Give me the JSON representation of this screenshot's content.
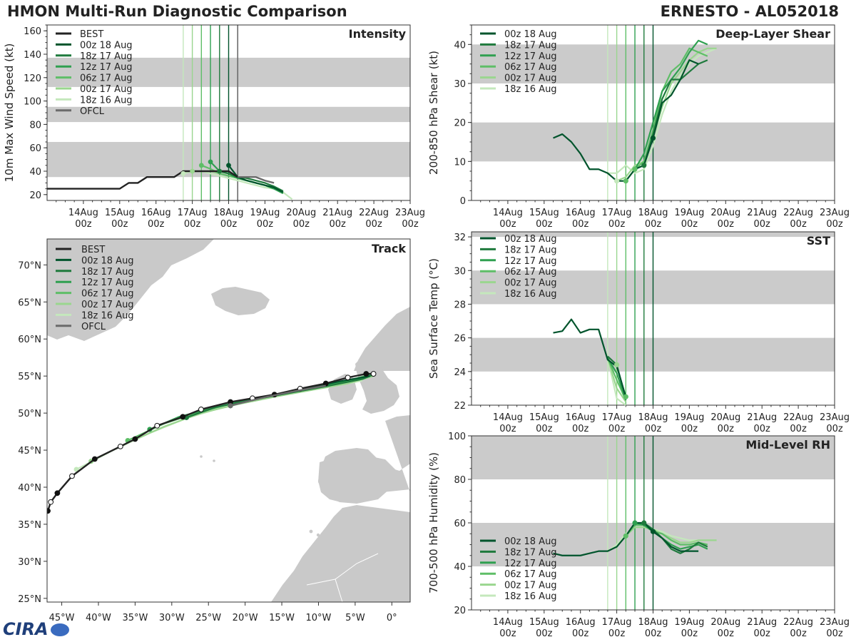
{
  "header": {
    "title_left": "HMON Multi-Run Diagnostic Comparison",
    "title_right": "ERNESTO - AL052018"
  },
  "logo": {
    "text": "CIRA",
    "icon": "cira-logo-icon"
  },
  "colors": {
    "best": "#222222",
    "ofcl": "#6b6b6b",
    "band": "#cbcbcb",
    "runs": [
      "#00542c",
      "#1f7a3d",
      "#2fa050",
      "#5ebe67",
      "#9ad68f",
      "#c4e8bc"
    ],
    "land": "#c9c9c9"
  },
  "time_axis": {
    "ticks": [
      "14Aug\n00z",
      "15Aug\n00z",
      "16Aug\n00z",
      "17Aug\n00z",
      "18Aug\n00z",
      "19Aug\n00z",
      "20Aug\n00z",
      "21Aug\n00z",
      "22Aug\n00z",
      "23Aug\n00z"
    ],
    "range": [
      13.0,
      23.0
    ]
  },
  "runs": [
    "00z 18 Aug",
    "18z 17 Aug",
    "12z 17 Aug",
    "06z 17 Aug",
    "00z 17 Aug",
    "18z 16 Aug"
  ],
  "run_init_days": [
    18.0,
    17.75,
    17.5,
    17.25,
    17.0,
    16.75
  ],
  "chart_data": [
    {
      "id": "intensity",
      "type": "line",
      "title": "Intensity",
      "ylabel": "10m Max Wind Speed (kt)",
      "ylim": [
        15,
        165
      ],
      "yticks": [
        20,
        40,
        60,
        80,
        100,
        120,
        140,
        160
      ],
      "bands": [
        [
          35,
          65
        ],
        [
          82,
          95
        ],
        [
          112,
          137
        ]
      ],
      "legend": [
        "BEST",
        "00z 18 Aug",
        "18z 17 Aug",
        "12z 17 Aug",
        "06z 17 Aug",
        "00z 17 Aug",
        "18z 16 Aug",
        "OFCL"
      ],
      "best": {
        "x": [
          13.0,
          14.0,
          14.75,
          15.0,
          15.25,
          15.5,
          15.75,
          16.0,
          16.25,
          16.5,
          16.75,
          17.0,
          17.25,
          17.5,
          17.75,
          18.0,
          18.25
        ],
        "y": [
          25,
          25,
          25,
          25,
          30,
          30,
          35,
          35,
          35,
          35,
          40,
          40,
          40,
          40,
          40,
          40,
          35
        ]
      },
      "ofcl": {
        "x": [
          18.25,
          18.5,
          18.75,
          19.0,
          19.25
        ],
        "y": [
          35,
          35,
          35,
          32,
          30
        ]
      },
      "ofcl_line_x": 18.25,
      "series": [
        {
          "x": [
            18.0,
            18.25,
            18.5,
            18.75,
            19.0,
            19.25,
            19.5
          ],
          "y": [
            45,
            35,
            32,
            30,
            28,
            26,
            22
          ]
        },
        {
          "x": [
            17.75,
            18.0,
            18.25,
            18.5,
            18.75,
            19.0,
            19.25,
            19.5
          ],
          "y": [
            40,
            38,
            35,
            34,
            32,
            30,
            27,
            23
          ]
        },
        {
          "x": [
            17.5,
            17.75,
            18.0,
            18.25,
            18.5,
            18.75,
            19.0,
            19.25,
            19.5
          ],
          "y": [
            48,
            40,
            38,
            34,
            32,
            30,
            28,
            25,
            21
          ]
        },
        {
          "x": [
            17.25,
            17.5,
            17.75,
            18.0,
            18.25,
            18.5,
            18.75,
            19.0,
            19.25,
            19.5
          ],
          "y": [
            45,
            42,
            38,
            36,
            34,
            32,
            30,
            28,
            26,
            22
          ]
        },
        {
          "x": [
            17.0,
            17.25,
            17.5,
            17.75,
            18.0,
            18.25,
            18.5,
            18.75,
            19.0,
            19.25,
            19.5
          ],
          "y": [
            40,
            40,
            40,
            38,
            36,
            34,
            32,
            30,
            28,
            25,
            22
          ]
        },
        {
          "x": [
            16.75,
            17.0,
            17.25,
            17.5,
            17.75,
            18.0,
            18.25,
            18.5,
            18.75,
            19.0,
            19.25,
            19.5,
            19.75
          ],
          "y": [
            38,
            40,
            40,
            38,
            36,
            34,
            32,
            30,
            28,
            26,
            25,
            22,
            16
          ]
        }
      ]
    },
    {
      "id": "shear",
      "type": "line",
      "title": "Deep-Layer Shear",
      "ylabel": "200-850 hPa Shear (kt)",
      "ylim": [
        0,
        45
      ],
      "yticks": [
        0,
        10,
        20,
        30,
        40
      ],
      "bands": [
        [
          10,
          20
        ],
        [
          30,
          40
        ]
      ],
      "legend": [
        "00z 18 Aug",
        "18z 17 Aug",
        "12z 17 Aug",
        "06z 17 Aug",
        "00z 17 Aug",
        "18z 16 Aug"
      ],
      "series": [
        {
          "x": [
            15.25,
            15.5,
            15.75,
            16.0,
            16.25,
            16.5,
            16.75,
            17.0,
            17.25,
            17.5,
            17.75,
            18.0,
            18.25,
            18.5,
            18.75,
            19.0,
            19.25
          ],
          "y": [
            16,
            17,
            15,
            12,
            8,
            8,
            7,
            5,
            5,
            8,
            9,
            16,
            25,
            27,
            31,
            36,
            35
          ]
        },
        {
          "x": [
            17.75,
            18.0,
            18.25,
            18.5,
            18.75,
            19.0,
            19.25,
            19.5
          ],
          "y": [
            9,
            17,
            26,
            31,
            31,
            33,
            35,
            36
          ]
        },
        {
          "x": [
            17.5,
            17.75,
            18.0,
            18.25,
            18.5,
            18.75,
            19.0,
            19.25,
            19.5
          ],
          "y": [
            8,
            12,
            20,
            28,
            31,
            34,
            38,
            41,
            40
          ]
        },
        {
          "x": [
            17.25,
            17.5,
            17.75,
            18.0,
            18.25,
            18.5,
            18.75,
            19.0,
            19.25,
            19.5
          ],
          "y": [
            5,
            8,
            10,
            18,
            28,
            33,
            35,
            39,
            38,
            37
          ]
        },
        {
          "x": [
            17.0,
            17.25,
            17.5,
            17.75,
            18.0,
            18.25,
            18.5,
            18.75,
            19.0,
            19.25,
            19.5,
            19.75
          ],
          "y": [
            5,
            6,
            9,
            10,
            16,
            24,
            30,
            33,
            36,
            38,
            39,
            39
          ]
        },
        {
          "x": [
            16.75,
            17.0,
            17.25,
            17.5,
            17.75,
            18.0,
            18.25,
            18.5,
            18.75,
            19.0,
            19.25,
            19.5,
            19.75
          ],
          "y": [
            7,
            7,
            9,
            7,
            8,
            14,
            22,
            28,
            32,
            35,
            37,
            38,
            39
          ]
        }
      ],
      "markers": [
        [
          17.0,
          5,
          5
        ],
        [
          17.25,
          5,
          3
        ],
        [
          17.5,
          8,
          3
        ],
        [
          17.75,
          9,
          1
        ],
        [
          18.0,
          16,
          0
        ]
      ]
    },
    {
      "id": "sst",
      "type": "line",
      "title": "SST",
      "ylabel": "Sea Surface Temp (°C)",
      "ylim": [
        22,
        32.3
      ],
      "yticks": [
        22,
        24,
        26,
        28,
        30,
        32
      ],
      "bands": [
        [
          24,
          26
        ],
        [
          28,
          30
        ],
        [
          32,
          33
        ]
      ],
      "legend": [
        "00z 18 Aug",
        "18z 17 Aug",
        "12z 17 Aug",
        "06z 17 Aug",
        "00z 17 Aug",
        "18z 16 Aug"
      ],
      "series": [
        {
          "x": [
            15.25,
            15.5,
            15.75,
            16.0,
            16.25,
            16.5,
            16.75,
            17.0,
            17.25
          ],
          "y": [
            26.3,
            26.4,
            27.1,
            26.3,
            26.5,
            26.5,
            24.7,
            24.3,
            22.5
          ]
        },
        {
          "x": [
            16.75,
            17.0,
            17.25
          ],
          "y": [
            24.9,
            24.4,
            22.4
          ]
        },
        {
          "x": [
            16.75,
            17.0,
            17.25
          ],
          "y": [
            24.8,
            23.9,
            22.3
          ]
        },
        {
          "x": [
            16.75,
            17.0,
            17.25
          ],
          "y": [
            24.8,
            23.5,
            22.3
          ]
        },
        {
          "x": [
            16.75,
            17.0,
            17.25
          ],
          "y": [
            24.8,
            23.0,
            22.2
          ]
        },
        {
          "x": [
            16.75,
            17.0,
            17.25
          ],
          "y": [
            24.8,
            22.4,
            22.0
          ]
        }
      ],
      "markers": [
        [
          17.0,
          24.4,
          4
        ],
        [
          17.25,
          22.5,
          3
        ]
      ]
    },
    {
      "id": "rh",
      "type": "line",
      "title": "Mid-Level RH",
      "ylabel": "700-500 hPa Humidity (%)",
      "ylim": [
        20,
        100
      ],
      "yticks": [
        20,
        40,
        60,
        80,
        100
      ],
      "bands": [
        [
          40,
          60
        ],
        [
          80,
          100
        ]
      ],
      "legend": [
        "00z 18 Aug",
        "18z 17 Aug",
        "12z 17 Aug",
        "06z 17 Aug",
        "00z 17 Aug",
        "18z 16 Aug"
      ],
      "series": [
        {
          "x": [
            15.25,
            15.5,
            15.75,
            16.0,
            16.25,
            16.5,
            16.75,
            17.0,
            17.25,
            17.5,
            17.75,
            18.0,
            18.25,
            18.5,
            18.75,
            19.0,
            19.25
          ],
          "y": [
            46,
            45,
            45,
            45,
            46,
            47,
            47,
            49,
            54,
            60,
            60,
            56,
            53,
            49,
            47,
            47,
            47
          ]
        },
        {
          "x": [
            17.75,
            18.0,
            18.25,
            18.5,
            18.75,
            19.0,
            19.25,
            19.5
          ],
          "y": [
            60,
            57,
            53,
            48,
            46,
            48,
            51,
            49
          ]
        },
        {
          "x": [
            17.5,
            17.75,
            18.0,
            18.25,
            18.5,
            18.75,
            19.0,
            19.25,
            19.5
          ],
          "y": [
            60,
            59,
            56,
            53,
            50,
            48,
            49,
            50,
            48
          ]
        },
        {
          "x": [
            17.25,
            17.5,
            17.75,
            18.0,
            18.25,
            18.5,
            18.75,
            19.0,
            19.25,
            19.5
          ],
          "y": [
            54,
            59,
            59,
            56,
            55,
            52,
            50,
            50,
            51,
            50
          ]
        },
        {
          "x": [
            17.0,
            17.25,
            17.5,
            17.75,
            18.0,
            18.25,
            18.5,
            18.75,
            19.0,
            19.25,
            19.5,
            19.75
          ],
          "y": [
            49,
            54,
            58,
            58,
            57,
            55,
            53,
            51,
            51,
            52,
            52,
            52
          ]
        },
        {
          "x": [
            16.75,
            17.0,
            17.25,
            17.5,
            17.75,
            18.0,
            18.25,
            18.5,
            18.75,
            19.0,
            19.25,
            19.5,
            19.75
          ],
          "y": [
            47,
            50,
            55,
            58,
            58,
            57,
            56,
            54,
            53,
            52,
            52,
            52,
            52
          ]
        }
      ],
      "markers": [
        [
          17.25,
          54,
          3
        ],
        [
          17.5,
          60,
          2
        ],
        [
          17.75,
          60,
          1
        ],
        [
          18.0,
          56,
          0
        ]
      ]
    },
    {
      "id": "track",
      "type": "line",
      "title": "Track",
      "xticks": [
        "45°W",
        "40°W",
        "35°W",
        "30°W",
        "25°W",
        "20°W",
        "15°W",
        "10°W",
        "5°W",
        "0°"
      ],
      "yticks": [
        "25°N",
        "30°N",
        "35°N",
        "40°N",
        "45°N",
        "50°N",
        "55°N",
        "60°N",
        "65°N",
        "70°N"
      ],
      "lon_range": [
        -47,
        2.5
      ],
      "lat_range": [
        24.5,
        73.5
      ],
      "legend": [
        "BEST",
        "00z 18 Aug",
        "18z 17 Aug",
        "12z 17 Aug",
        "06z 17 Aug",
        "00z 17 Aug",
        "18z 16 Aug",
        "OFCL"
      ],
      "best": {
        "lon": [
          -46.9,
          -46.5,
          -45.6,
          -43.6,
          -40.5,
          -37.0,
          -35.0,
          -32.0,
          -28.5,
          -26.0,
          -22.0,
          -19.0,
          -16.0,
          -12.5,
          -9.0,
          -6.0,
          -3.5,
          -2.5
        ],
        "lat": [
          36.8,
          38.0,
          39.2,
          41.5,
          43.8,
          45.5,
          46.5,
          48.3,
          49.5,
          50.5,
          51.5,
          52.0,
          52.5,
          53.3,
          54.0,
          54.8,
          55.3,
          55.3
        ]
      },
      "ofcl": {
        "lon": [
          -22.0,
          -20.0,
          -17.0,
          -13.0,
          -9.0
        ],
        "lat": [
          51.0,
          51.5,
          52.2,
          53.0,
          53.7
        ]
      },
      "series": [
        {
          "lon": [
            -22.0,
            -18.0,
            -14.0,
            -11.0,
            -7.0,
            -3.0
          ],
          "lat": [
            51.0,
            52.0,
            52.8,
            53.5,
            54.3,
            55.0
          ]
        },
        {
          "lon": [
            -28.0,
            -24.0,
            -19.0,
            -14.0,
            -9.0,
            -4.0,
            -2.5
          ],
          "lat": [
            49.4,
            50.8,
            51.8,
            52.7,
            53.6,
            54.6,
            55.2
          ]
        },
        {
          "lon": [
            -33.0,
            -29.0,
            -24.0,
            -19.0,
            -14.0,
            -9.0,
            -4.0,
            -2.5
          ],
          "lat": [
            47.8,
            49.5,
            50.8,
            51.9,
            52.8,
            53.7,
            54.8,
            55.5
          ]
        },
        {
          "lon": [
            -36.0,
            -31.0,
            -26.0,
            -21.0,
            -16.0,
            -11.0,
            -6.0,
            -2.5
          ],
          "lat": [
            46.3,
            48.6,
            50.2,
            51.5,
            52.5,
            53.4,
            54.4,
            55.3
          ]
        },
        {
          "lon": [
            -41.0,
            -36.0,
            -31.0,
            -26.0,
            -21.0,
            -16.0,
            -11.0,
            -6.0,
            -2.5
          ],
          "lat": [
            43.5,
            46.0,
            48.2,
            50.0,
            51.2,
            52.2,
            53.1,
            54.0,
            55.0
          ]
        },
        {
          "lon": [
            -43.0,
            -38.0,
            -33.0,
            -28.0,
            -23.0,
            -18.0,
            -13.0,
            -8.0,
            -4.0
          ],
          "lat": [
            42.4,
            45.0,
            47.3,
            49.3,
            50.8,
            51.8,
            52.8,
            53.6,
            54.4
          ]
        }
      ]
    }
  ]
}
